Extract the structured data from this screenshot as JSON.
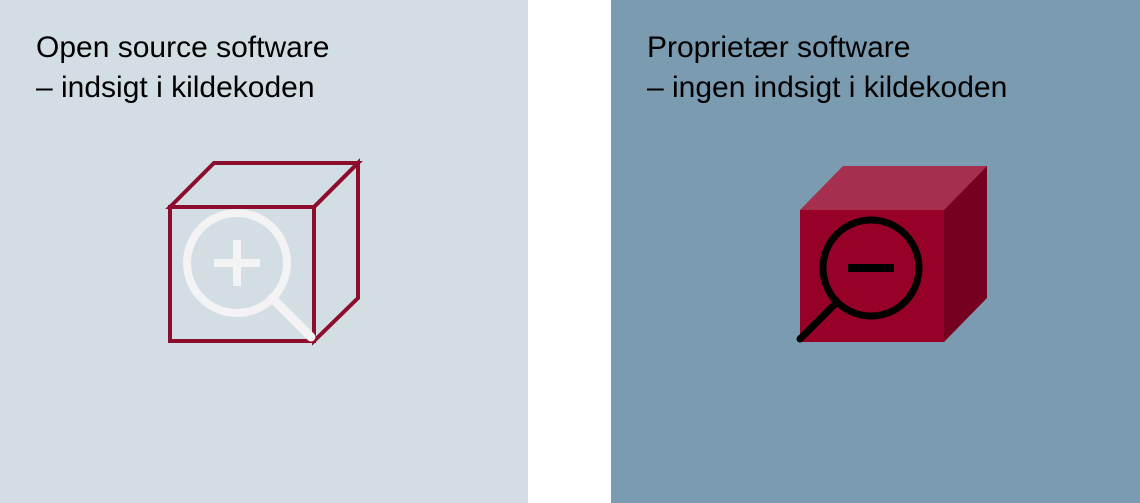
{
  "panels": {
    "open_source": {
      "title_line1": "Open source software",
      "title_line2": "– indsigt i kildekoden",
      "background": "#d3dee4",
      "icon": "transparent-cube-with-magnifier-plus-icon",
      "cube_color": "#8d0d2f",
      "magnifier_color": "#f3f3f3"
    },
    "proprietary": {
      "title_line1": "Proprietær software",
      "title_line2": "– ingen indsigt i kildekoden",
      "background": "#7a9bb0",
      "icon": "solid-cube-with-magnifier-minus-icon",
      "cube_front_color": "#970027",
      "cube_top_color": "#a52f4d",
      "cube_side_color": "#760020",
      "magnifier_color": "#000000"
    }
  }
}
